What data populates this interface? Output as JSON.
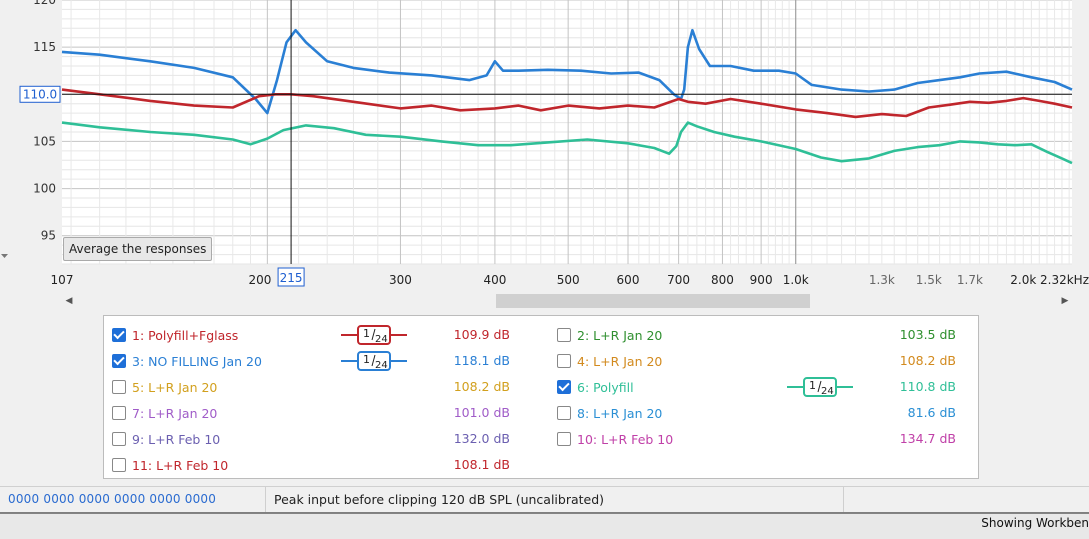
{
  "plot": {
    "average_button_label": "Average the responses",
    "scroll_left_arrow": "◀",
    "scroll_right_arrow": "▶",
    "cursor_readout_y": "110.0",
    "cursor_readout_x": "215"
  },
  "chart_data": {
    "type": "line",
    "title": "",
    "xlabel": "",
    "ylabel": "",
    "x_scale": "log",
    "xlim": [
      107,
      2320
    ],
    "ylim": [
      92,
      120
    ],
    "y_ticks": [
      "95",
      "100",
      "105",
      "110",
      "115"
    ],
    "y_top_partial_label": "120",
    "x_tick_labels": [
      "107",
      "200",
      "300",
      "400",
      "500",
      "600",
      "700",
      "800",
      "900",
      "1.0k",
      "1.3k",
      "1.5k",
      "1.7k",
      "2.0k",
      "2.32kHz"
    ],
    "x_tick_values": [
      107,
      200,
      300,
      400,
      500,
      600,
      700,
      800,
      900,
      1000,
      1300,
      1500,
      1700,
      2000,
      2320
    ],
    "grid": true,
    "cursor": {
      "x": 215,
      "y": 110.0
    },
    "series": [
      {
        "name": "3: NO FILLING Jan 20",
        "color": "#2a7fd4",
        "x": [
          107,
          120,
          140,
          160,
          180,
          193,
          200,
          206,
          212,
          218,
          225,
          240,
          260,
          290,
          330,
          370,
          390,
          400,
          410,
          430,
          470,
          520,
          570,
          620,
          660,
          690,
          705,
          712,
          720,
          730,
          745,
          770,
          820,
          880,
          950,
          1000,
          1050,
          1150,
          1250,
          1350,
          1450,
          1550,
          1650,
          1750,
          1900,
          2050,
          2200,
          2320
        ],
        "y": [
          114.5,
          114.2,
          113.5,
          112.8,
          111.8,
          109.5,
          108.0,
          111.5,
          115.5,
          116.8,
          115.5,
          113.5,
          112.8,
          112.3,
          112.0,
          111.5,
          112.0,
          113.5,
          112.5,
          112.5,
          112.6,
          112.5,
          112.2,
          112.3,
          111.5,
          110.0,
          109.5,
          110.5,
          115.0,
          116.8,
          114.8,
          113.0,
          113.0,
          112.5,
          112.5,
          112.2,
          111.0,
          110.5,
          110.3,
          110.5,
          111.2,
          111.5,
          111.8,
          112.2,
          112.4,
          111.8,
          111.3,
          110.5
        ]
      },
      {
        "name": "1: Polyfill+Fglass",
        "color": "#c0262c",
        "x": [
          107,
          120,
          140,
          160,
          180,
          195,
          205,
          215,
          230,
          260,
          300,
          330,
          360,
          400,
          430,
          460,
          500,
          550,
          600,
          650,
          700,
          720,
          760,
          820,
          900,
          1000,
          1100,
          1200,
          1300,
          1400,
          1500,
          1600,
          1700,
          1800,
          1900,
          2000,
          2100,
          2200,
          2320
        ],
        "y": [
          110.5,
          110.0,
          109.3,
          108.8,
          108.6,
          109.8,
          110.0,
          110.0,
          109.8,
          109.2,
          108.5,
          108.8,
          108.3,
          108.5,
          108.8,
          108.3,
          108.8,
          108.5,
          108.8,
          108.6,
          109.5,
          109.2,
          109.0,
          109.5,
          109.0,
          108.4,
          108.0,
          107.6,
          107.9,
          107.7,
          108.6,
          108.9,
          109.2,
          109.1,
          109.3,
          109.6,
          109.3,
          109.0,
          108.6
        ]
      },
      {
        "name": "6: Polyfill",
        "color": "#2fbf97",
        "x": [
          107,
          120,
          140,
          160,
          180,
          190,
          200,
          210,
          225,
          245,
          270,
          300,
          340,
          380,
          420,
          470,
          530,
          600,
          650,
          680,
          695,
          705,
          720,
          740,
          780,
          830,
          900,
          1000,
          1080,
          1150,
          1250,
          1350,
          1450,
          1550,
          1650,
          1750,
          1850,
          1950,
          2050,
          2150,
          2250,
          2320
        ],
        "y": [
          107.0,
          106.5,
          106.0,
          105.7,
          105.2,
          104.7,
          105.3,
          106.2,
          106.7,
          106.4,
          105.7,
          105.5,
          105.0,
          104.6,
          104.6,
          104.9,
          105.2,
          104.8,
          104.3,
          103.7,
          104.5,
          106.0,
          107.0,
          106.6,
          106.0,
          105.5,
          105.0,
          104.2,
          103.3,
          102.9,
          103.2,
          104.0,
          104.4,
          104.6,
          105.0,
          104.9,
          104.7,
          104.6,
          104.7,
          103.9,
          103.2,
          102.7
        ]
      }
    ]
  },
  "legend": [
    {
      "label": "1: Polyfill+Fglass",
      "checked": true,
      "color": "#c0262c",
      "smoothing": "1/24",
      "value": "109.9 dB"
    },
    {
      "label": "2: L+R Jan 20",
      "checked": false,
      "color": "#2f8f2f",
      "smoothing": "",
      "value": "103.5 dB"
    },
    {
      "label": "3: NO FILLING Jan 20",
      "checked": true,
      "color": "#2a7fd4",
      "smoothing": "1/24",
      "value": "118.1 dB"
    },
    {
      "label": "4: L+R Jan 20",
      "checked": false,
      "color": "#d28a1e",
      "smoothing": "",
      "value": "108.2 dB"
    },
    {
      "label": "5: L+R Jan 20",
      "checked": false,
      "color": "#d2a01e",
      "smoothing": "",
      "value": "108.2 dB"
    },
    {
      "label": "6: Polyfill",
      "checked": true,
      "color": "#2fbf97",
      "smoothing": "1/24",
      "value": "110.8 dB"
    },
    {
      "label": "7: L+R Jan 20",
      "checked": false,
      "color": "#a05cc8",
      "smoothing": "",
      "value": "101.0 dB"
    },
    {
      "label": "8: L+R Jan 20",
      "checked": false,
      "color": "#2a8fd4",
      "smoothing": "",
      "value": "81.6 dB"
    },
    {
      "label": "9: L+R Feb 10",
      "checked": false,
      "color": "#6b5fb0",
      "smoothing": "",
      "value": "132.0 dB"
    },
    {
      "label": "10: L+R Feb 10",
      "checked": false,
      "color": "#c040a8",
      "smoothing": "",
      "value": "134.7 dB"
    },
    {
      "label": "11: L+R Feb 10",
      "checked": false,
      "color": "#c0262c",
      "smoothing": "",
      "value": "108.1 dB"
    }
  ],
  "status": {
    "left": "0000 0000  0000 0000  0000 0000",
    "message": "Peak input before clipping 120 dB SPL (uncalibrated)"
  },
  "bottom": {
    "message": "Showing Workben"
  }
}
